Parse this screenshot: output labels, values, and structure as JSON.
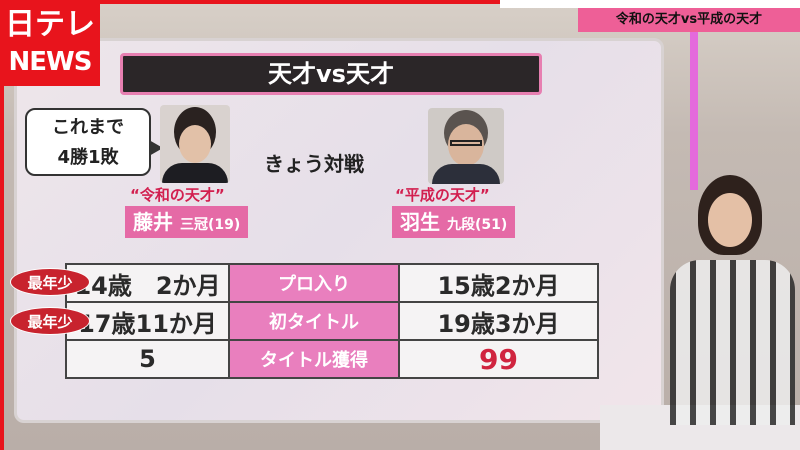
{
  "logo": {
    "line1": "日テレ",
    "line2": "NEWS"
  },
  "caption": {
    "text": "令和の天才vs平成の天才"
  },
  "board": {
    "title": "天才vs天才",
    "bubble": [
      "これまで",
      "4勝1敗"
    ],
    "center_text": "きょう対戦",
    "left": {
      "nickname": "“令和の天才”",
      "name": "藤井",
      "rank": "三冠(19)"
    },
    "right": {
      "nickname": "“平成の天才”",
      "name": "羽生",
      "rank": "九段(51)"
    },
    "badge": "最年少",
    "rows": [
      {
        "left": "14歳　2か月",
        "label": "プロ入り",
        "right": "15歳2か月",
        "badge": true
      },
      {
        "left": "17歳11か月",
        "label": "初タイトル",
        "right": "19歳3か月",
        "badge": true
      },
      {
        "left": "5",
        "label": "タイトル獲得",
        "right": "99",
        "badge": false
      }
    ]
  },
  "colors": {
    "brand_red": "#e8141c",
    "accent_pink": "#e97fbe",
    "highlight_red": "#d0243f"
  }
}
